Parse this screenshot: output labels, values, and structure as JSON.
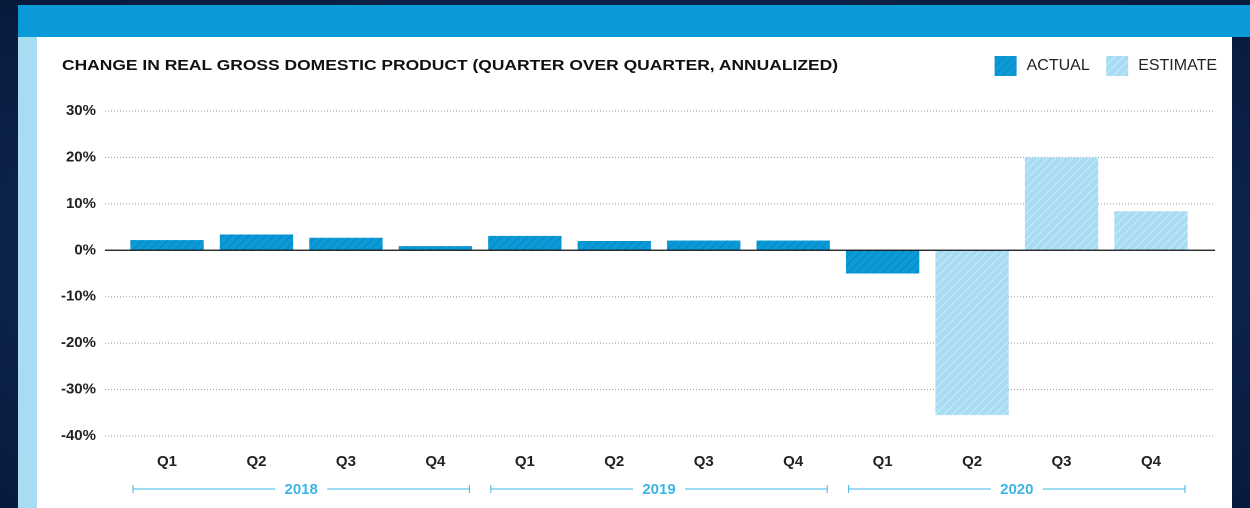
{
  "chart_data": {
    "type": "bar",
    "title": "CHANGE IN REAL GROSS DOMESTIC PRODUCT (QUARTER OVER QUARTER, ANNUALIZED)",
    "categories": [
      "Q1",
      "Q2",
      "Q3",
      "Q4",
      "Q1",
      "Q2",
      "Q3",
      "Q4",
      "Q1",
      "Q2",
      "Q3",
      "Q4"
    ],
    "x_groups": [
      "2018",
      "2019",
      "2020"
    ],
    "series": [
      {
        "name": "ACTUAL",
        "color": "#0a9ad8",
        "values": [
          2.2,
          3.4,
          2.7,
          0.9,
          3.1,
          2.0,
          2.1,
          2.1,
          -5.0,
          null,
          null,
          null
        ]
      },
      {
        "name": "ESTIMATE",
        "color": "#a8dcf3",
        "values": [
          null,
          null,
          null,
          null,
          null,
          null,
          null,
          null,
          null,
          -35.5,
          20.0,
          8.4
        ]
      }
    ],
    "ylim": [
      -40,
      30
    ],
    "yticks": [
      {
        "value": 30,
        "label": "30%"
      },
      {
        "value": 20,
        "label": "20%"
      },
      {
        "value": 10,
        "label": "10%"
      },
      {
        "value": 0,
        "label": "0%"
      },
      {
        "value": -10,
        "label": "-10%"
      },
      {
        "value": -20,
        "label": "-20%"
      },
      {
        "value": -30,
        "label": "-30%"
      },
      {
        "value": -40,
        "label": "-40%"
      }
    ],
    "grid": true,
    "legend": "top-right"
  }
}
